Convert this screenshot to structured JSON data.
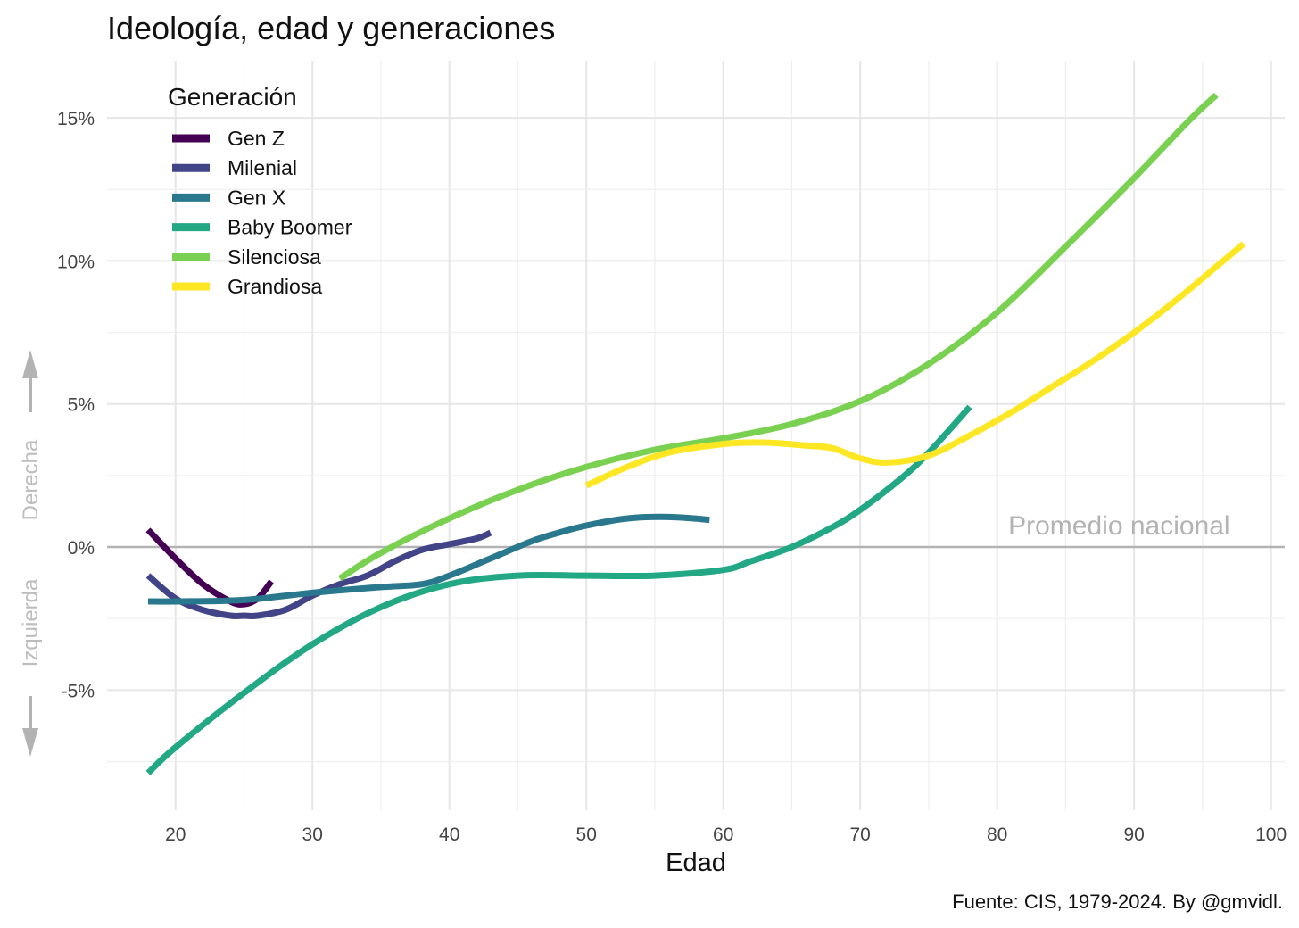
{
  "chart_data": {
    "type": "line",
    "title": "Ideología, edad y generaciones",
    "xlabel": "Edad",
    "ylabel": "",
    "xlim": [
      15,
      101
    ],
    "ylim": [
      -9.2,
      17
    ],
    "x_ticks": [
      20,
      30,
      40,
      50,
      60,
      70,
      80,
      90,
      100
    ],
    "x_tick_labels": [
      "20",
      "30",
      "40",
      "50",
      "60",
      "70",
      "80",
      "90",
      "100"
    ],
    "y_ticks": [
      -5,
      0,
      5,
      10,
      15
    ],
    "y_tick_labels": [
      "-5%",
      "0%",
      "5%",
      "10%",
      "15%"
    ],
    "grid": true,
    "legend": {
      "title": "Generación",
      "position": "top-left"
    },
    "reference_line": {
      "y": 0,
      "label": "Promedio nacional",
      "color": "#b3b3b3"
    },
    "side_labels": {
      "up": "Derecha",
      "down": "Izquierda",
      "arrow_color": "#b3b3b3"
    },
    "caption": "Fuente: CIS, 1979-2024. By @gmvidl.",
    "series": [
      {
        "name": "Gen Z",
        "color": "#440154",
        "x": [
          18,
          20,
          22,
          24,
          25,
          26,
          27
        ],
        "y": [
          0.6,
          -0.4,
          -1.3,
          -1.9,
          -2.0,
          -1.8,
          -1.2
        ]
      },
      {
        "name": "Milenial",
        "color": "#414487",
        "x": [
          18,
          20,
          22,
          24,
          25,
          26,
          28,
          30,
          32,
          34,
          36,
          38,
          40,
          42,
          43
        ],
        "y": [
          -1.0,
          -1.8,
          -2.2,
          -2.4,
          -2.4,
          -2.4,
          -2.2,
          -1.7,
          -1.3,
          -1.0,
          -0.5,
          -0.1,
          0.1,
          0.3,
          0.5
        ]
      },
      {
        "name": "Gen X",
        "color": "#2a788e",
        "x": [
          18,
          20,
          25,
          30,
          35,
          38,
          40,
          43,
          46,
          48,
          50,
          53,
          56,
          59
        ],
        "y": [
          -1.9,
          -1.9,
          -1.85,
          -1.6,
          -1.4,
          -1.3,
          -1.0,
          -0.4,
          0.2,
          0.5,
          0.75,
          1.0,
          1.05,
          0.95
        ]
      },
      {
        "name": "Baby Boomer",
        "color": "#22a884",
        "x": [
          18,
          20,
          25,
          30,
          35,
          40,
          45,
          50,
          55,
          60,
          62,
          65,
          68,
          70,
          73,
          75,
          78
        ],
        "y": [
          -7.9,
          -7.0,
          -5.1,
          -3.4,
          -2.1,
          -1.3,
          -1.0,
          -1.0,
          -1.0,
          -0.8,
          -0.5,
          0.0,
          0.7,
          1.3,
          2.4,
          3.3,
          4.9
        ]
      },
      {
        "name": "Silenciosa",
        "color": "#7ad151",
        "x": [
          32,
          35,
          40,
          45,
          50,
          55,
          60,
          65,
          70,
          75,
          80,
          85,
          90,
          94,
          96
        ],
        "y": [
          -1.1,
          -0.2,
          1.0,
          2.0,
          2.8,
          3.4,
          3.8,
          4.3,
          5.1,
          6.4,
          8.2,
          10.5,
          12.9,
          14.9,
          15.8
        ]
      },
      {
        "name": "Grandiosa",
        "color": "#fde725",
        "x": [
          50,
          53,
          56,
          60,
          63,
          66,
          68,
          70,
          72,
          75,
          78,
          81,
          84,
          87,
          90,
          93,
          96,
          98
        ],
        "y": [
          2.15,
          2.8,
          3.3,
          3.6,
          3.65,
          3.55,
          3.45,
          3.1,
          2.95,
          3.2,
          3.9,
          4.7,
          5.6,
          6.5,
          7.5,
          8.6,
          9.8,
          10.6
        ]
      }
    ]
  }
}
